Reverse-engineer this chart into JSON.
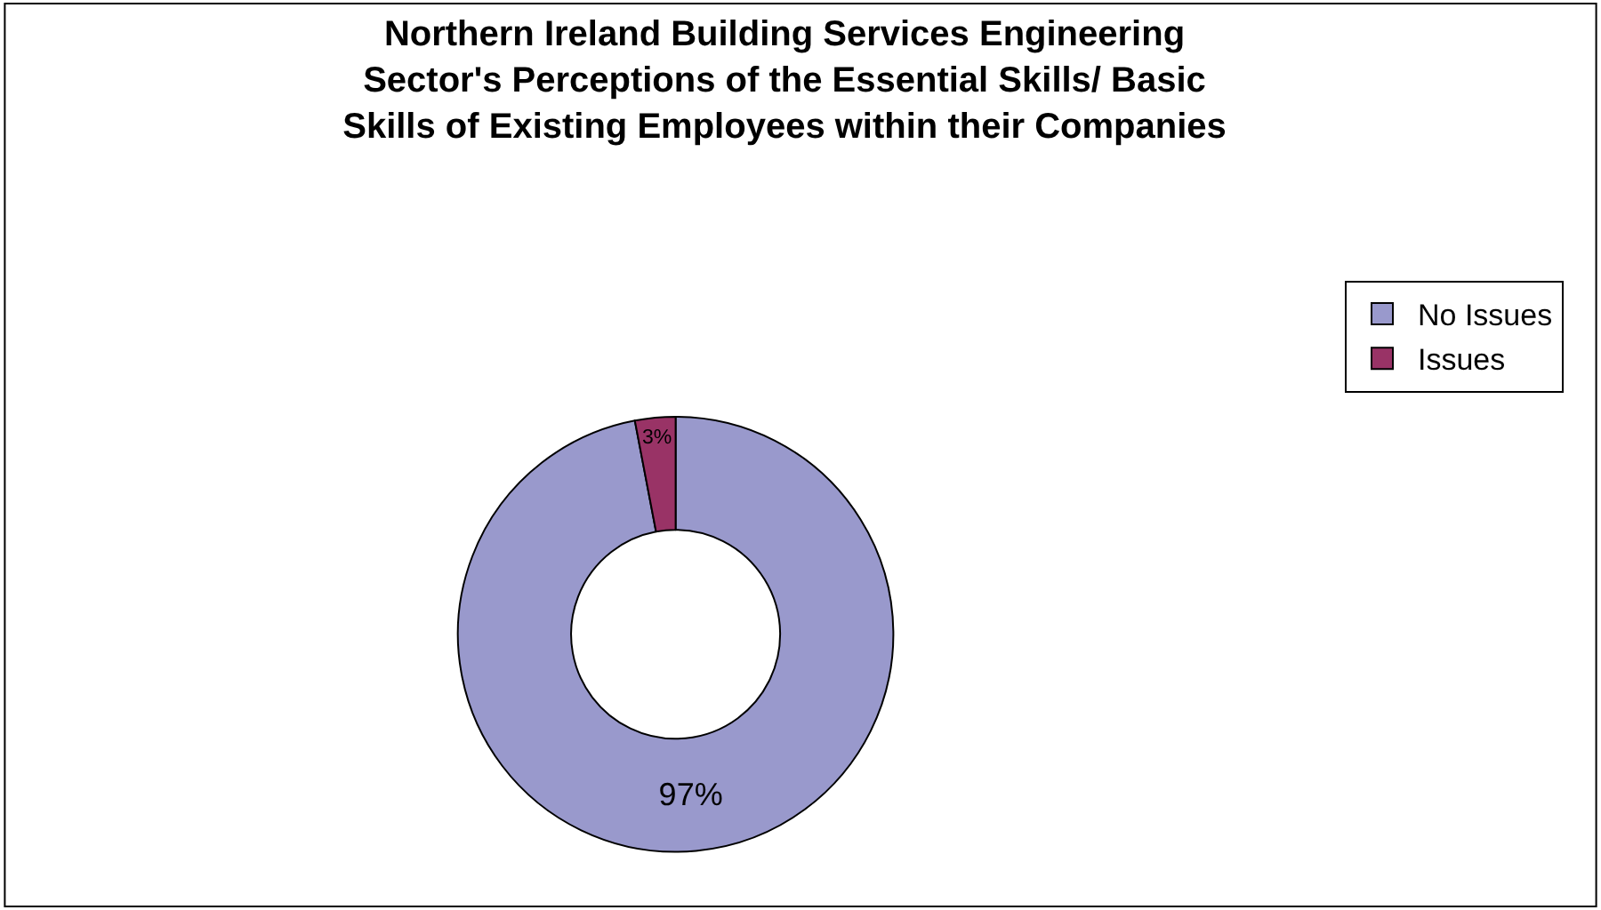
{
  "chart_data": {
    "type": "donut",
    "title": "Northern Ireland Building Services Engineering Sector's Perceptions of the Essential Skills/ Basic Skills of Existing Employees within their Companies",
    "categories": [
      "No Issues",
      "Issues"
    ],
    "values": [
      97,
      3
    ],
    "colors": [
      "#9999cc",
      "#993366"
    ],
    "value_labels": [
      "97%",
      "3%"
    ],
    "legend": "right"
  }
}
